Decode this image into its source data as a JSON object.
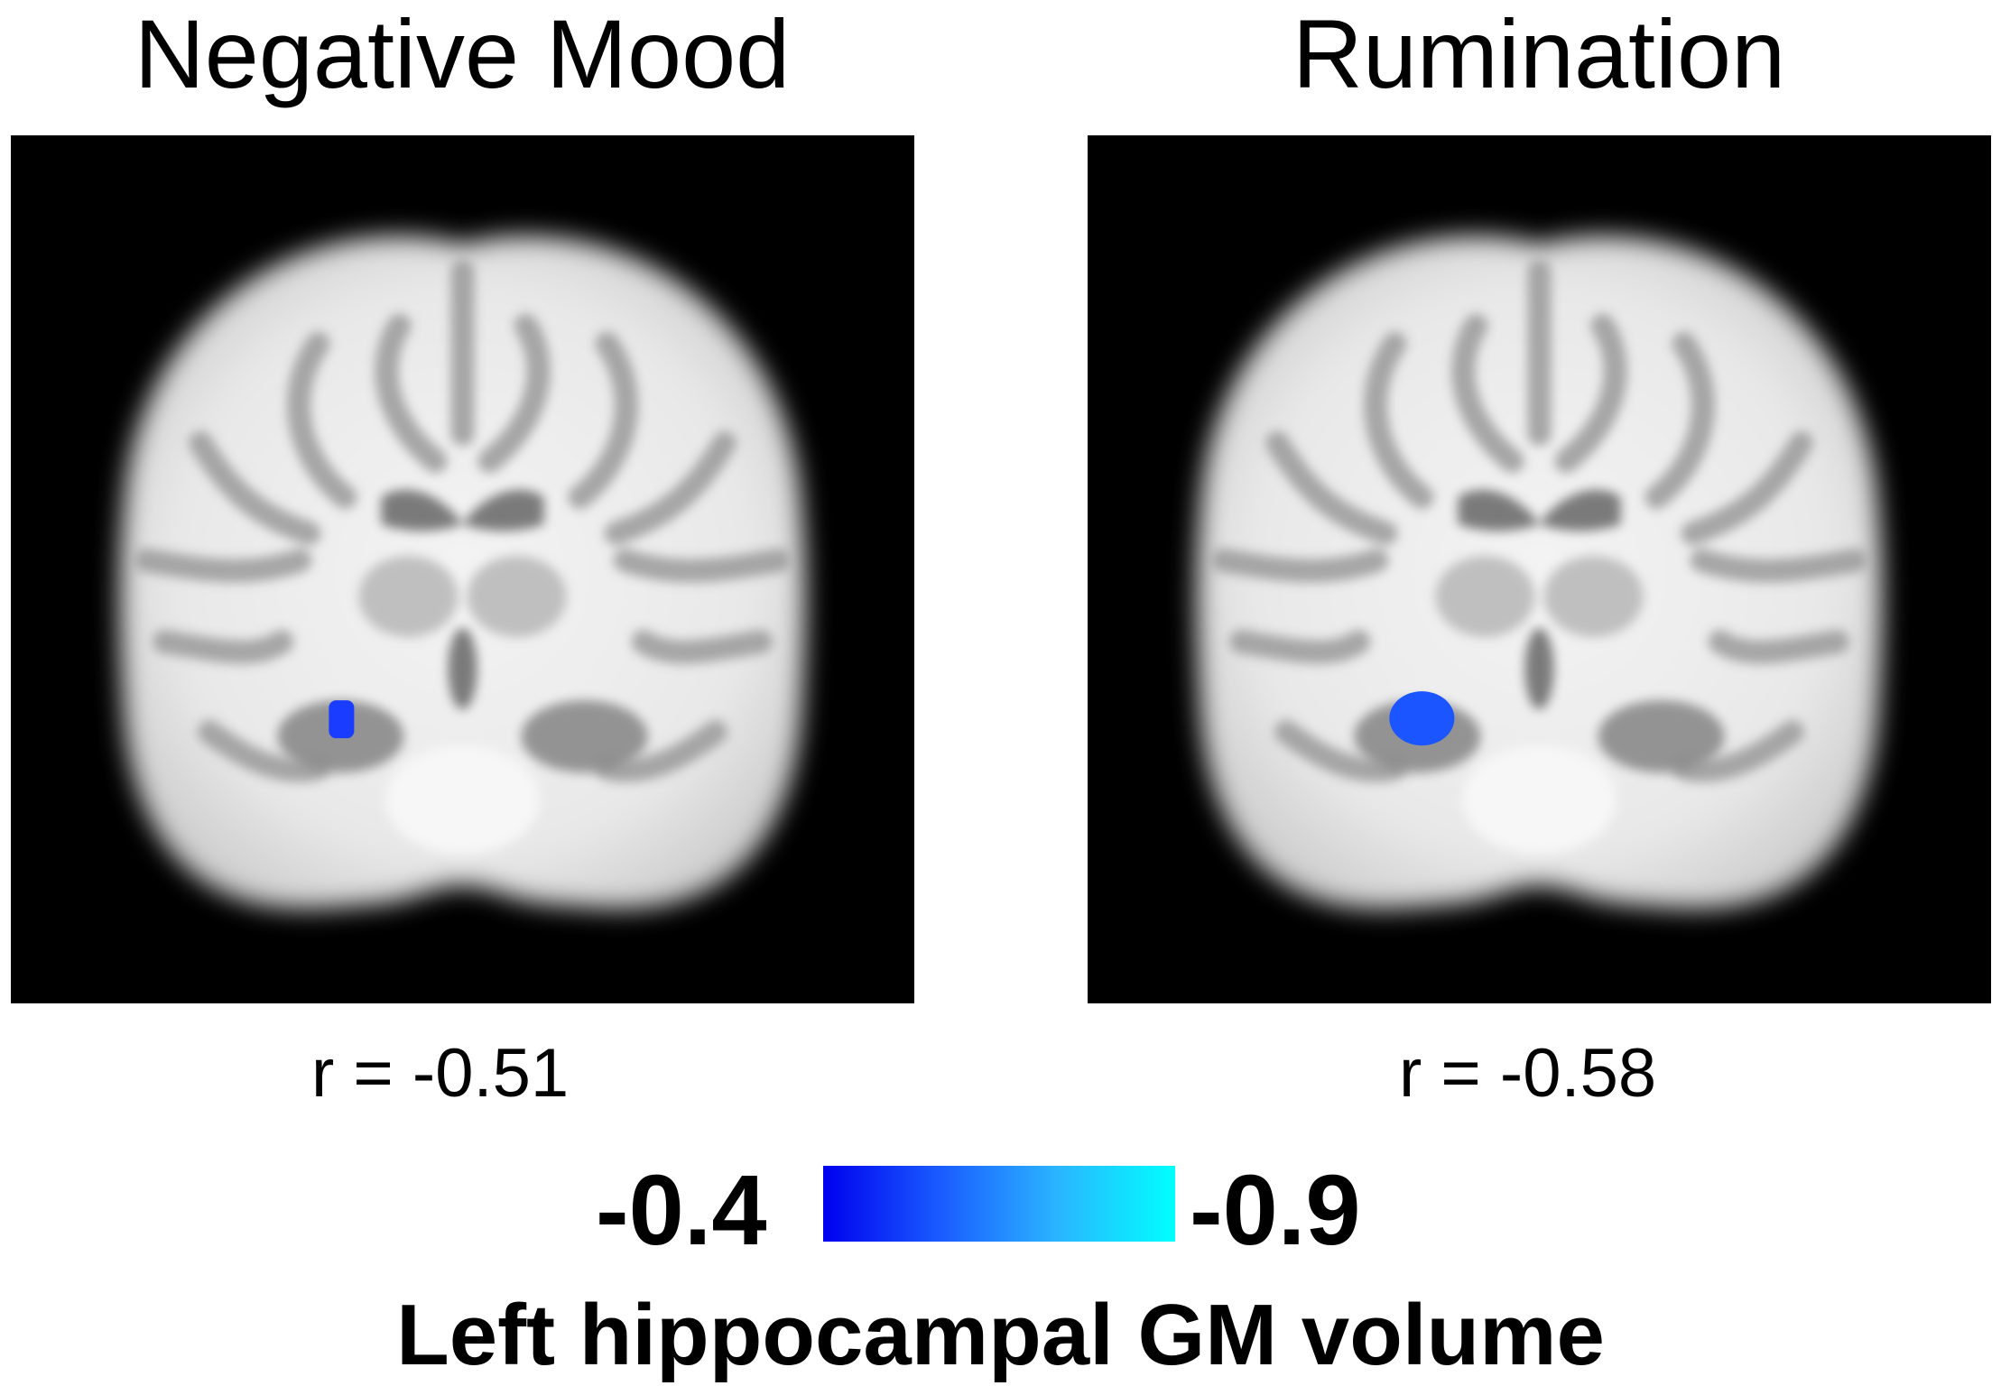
{
  "panels": [
    {
      "title": "Negative Mood",
      "r_text": "r = -0.51",
      "icon": "coronal-brain-slice",
      "cluster_color": "#1a3cff"
    },
    {
      "title": "Rumination",
      "r_text": "r =  -0.58",
      "icon": "coronal-brain-slice",
      "cluster_color": "#1a55ff"
    }
  ],
  "colorbar": {
    "min_label": "-0.4",
    "max_label": "-0.9",
    "colors": [
      "#0000ee",
      "#1a5cff",
      "#2ab5ff",
      "#00ffff"
    ]
  },
  "caption": "Left hippocampal GM volume"
}
